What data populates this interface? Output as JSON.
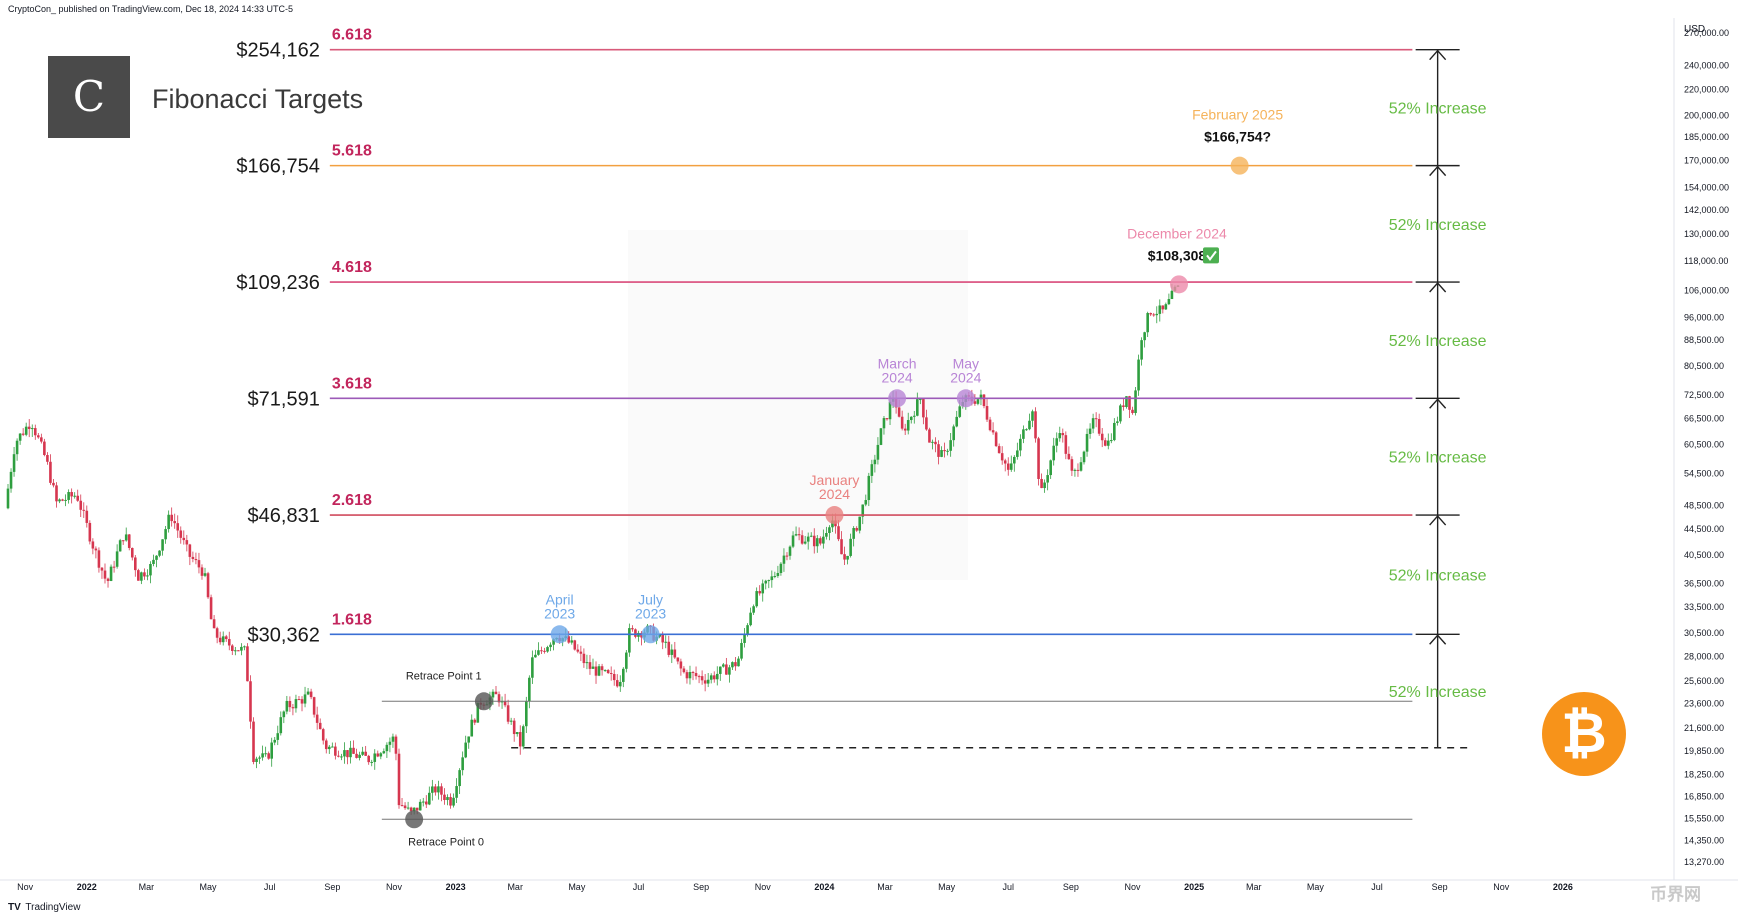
{
  "header": {
    "publisher": "CryptoCon_ published on TradingView.com, Dec 18, 2024 14:33 UTC-5",
    "title": "Fibonacci Targets",
    "currency": "USD",
    "footer_brand": "TradingView",
    "logo_glyph": "C",
    "badge_icon": "bitcoin-icon"
  },
  "colors": {
    "candle_up": "#2e9e3f",
    "candle_down": "#d6364f",
    "increase_text": "#66bb44",
    "fib_label": "#c2255c",
    "level_1618": "#3b6fd4",
    "level_2618": "#d04c5e",
    "level_3618": "#9c5ab8",
    "level_4618": "#d94a7a",
    "level_5618": "#f2a040",
    "level_6618": "#d85a7a",
    "badge": "#f7931a"
  },
  "chart_data": {
    "type": "candlestick",
    "y_scale": "log",
    "ylim": [
      13270,
      275000
    ],
    "x_range": [
      "2021-10-15",
      "2026-04-15"
    ],
    "y_ticks": [
      "270,000.00",
      "240,000.00",
      "220,000.00",
      "200,000.00",
      "185,000.00",
      "170,000.00",
      "154,000.00",
      "142,000.00",
      "130,000.00",
      "118,000.00",
      "106,000.00",
      "96,000.00",
      "88,500.00",
      "80,500.00",
      "72,500.00",
      "66,500.00",
      "60,500.00",
      "54,500.00",
      "48,500.00",
      "44,500.00",
      "40,500.00",
      "36,500.00",
      "33,500.00",
      "30,500.00",
      "28,000.00",
      "25,600.00",
      "23,600.00",
      "21,600.00",
      "19,850.00",
      "18,250.00",
      "16,850.00",
      "15,550.00",
      "14,350.00",
      "13,270.00"
    ],
    "x_ticks": [
      {
        "label": "Nov",
        "date": "2021-11-01"
      },
      {
        "label": "2022",
        "date": "2022-01-01"
      },
      {
        "label": "Mar",
        "date": "2022-03-01"
      },
      {
        "label": "May",
        "date": "2022-05-01"
      },
      {
        "label": "Jul",
        "date": "2022-07-01"
      },
      {
        "label": "Sep",
        "date": "2022-09-01"
      },
      {
        "label": "Nov",
        "date": "2022-11-01"
      },
      {
        "label": "2023",
        "date": "2023-01-01"
      },
      {
        "label": "Mar",
        "date": "2023-03-01"
      },
      {
        "label": "May",
        "date": "2023-05-01"
      },
      {
        "label": "Jul",
        "date": "2023-07-01"
      },
      {
        "label": "Sep",
        "date": "2023-09-01"
      },
      {
        "label": "Nov",
        "date": "2023-11-01"
      },
      {
        "label": "2024",
        "date": "2024-01-01"
      },
      {
        "label": "Mar",
        "date": "2024-03-01"
      },
      {
        "label": "May",
        "date": "2024-05-01"
      },
      {
        "label": "Jul",
        "date": "2024-07-01"
      },
      {
        "label": "Sep",
        "date": "2024-09-01"
      },
      {
        "label": "Nov",
        "date": "2024-11-01"
      },
      {
        "label": "2025",
        "date": "2025-01-01"
      },
      {
        "label": "Mar",
        "date": "2025-03-01"
      },
      {
        "label": "May",
        "date": "2025-05-01"
      },
      {
        "label": "Jul",
        "date": "2025-07-01"
      },
      {
        "label": "Sep",
        "date": "2025-09-01"
      },
      {
        "label": "Nov",
        "date": "2025-11-01"
      },
      {
        "label": "2026",
        "date": "2026-01-01"
      }
    ],
    "levels": [
      {
        "ratio": "6.618",
        "price_label": "$254,162",
        "value": 254162,
        "color": "#d85a7a"
      },
      {
        "ratio": "5.618",
        "price_label": "$166,754",
        "value": 166754,
        "color": "#f2a040"
      },
      {
        "ratio": "4.618",
        "price_label": "$109,236",
        "value": 109236,
        "color": "#d94a7a"
      },
      {
        "ratio": "3.618",
        "price_label": "$71,591",
        "value": 71591,
        "color": "#9c5ab8"
      },
      {
        "ratio": "2.618",
        "price_label": "$46,831",
        "value": 46831,
        "color": "#d04c5e"
      },
      {
        "ratio": "1.618",
        "price_label": "$30,362",
        "value": 30362,
        "color": "#3b6fd4"
      }
    ],
    "level_start_date": "2022-10-20",
    "level_end_date": "2025-08-05",
    "retrace_lines": [
      {
        "label": "Retrace Point 1",
        "value": 23800,
        "start_date": "2022-10-20"
      },
      {
        "label": "Retrace Point 0",
        "value": 15500,
        "start_date": "2022-10-20"
      }
    ],
    "base_dashed_value": 20100,
    "dashed_start_date": "2023-02-25",
    "increase_labels": [
      "52% Increase",
      "52% Increase",
      "52% Increase",
      "52% Increase",
      "52% Increase",
      "52% Increase"
    ],
    "increase_bounds": [
      254162,
      166754,
      109236,
      71591,
      46831,
      30362,
      20100
    ],
    "increase_arrow_date": "2025-08-30",
    "touch_points": [
      {
        "label_lines": [
          "Retrace Point 0"
        ],
        "date": "2022-11-21",
        "value": 15500,
        "color": "#555555",
        "label_side": "below"
      },
      {
        "label_lines": [
          "Retrace Point 1"
        ],
        "date": "2023-01-29",
        "value": 23800,
        "color": "#555555",
        "label_side": "above"
      },
      {
        "label_lines": [
          "April",
          "2023"
        ],
        "date": "2023-04-14",
        "value": 30362,
        "color": "#6ea8e8",
        "label_side": "above"
      },
      {
        "label_lines": [
          "July",
          "2023"
        ],
        "date": "2023-07-13",
        "value": 30362,
        "color": "#6ea8e8",
        "label_side": "above"
      },
      {
        "label_lines": [
          "January",
          "2024"
        ],
        "date": "2024-01-11",
        "value": 46831,
        "color": "#e9817f",
        "label_side": "above"
      },
      {
        "label_lines": [
          "March",
          "2024"
        ],
        "date": "2024-03-13",
        "value": 71591,
        "color": "#b884d6",
        "label_side": "above"
      },
      {
        "label_lines": [
          "May",
          "2024"
        ],
        "date": "2024-05-20",
        "value": 71591,
        "color": "#b884d6",
        "label_side": "above"
      },
      {
        "label_lines": [
          "December 2024",
          "$108,308"
        ],
        "date": "2024-12-17",
        "value": 108308,
        "color": "#ec89aa",
        "label_side": "above",
        "check": true
      },
      {
        "label_lines": [
          "February 2025",
          "$166,754?"
        ],
        "date": "2025-02-15",
        "value": 166754,
        "color": "#f5b35a",
        "label_side": "above"
      }
    ],
    "price_path": [
      [
        "2021-10-15",
        48000
      ],
      [
        "2021-10-25",
        61000
      ],
      [
        "2021-11-10",
        66000
      ],
      [
        "2021-11-25",
        57000
      ],
      [
        "2021-12-05",
        49000
      ],
      [
        "2021-12-25",
        50500
      ],
      [
        "2022-01-10",
        42000
      ],
      [
        "2022-01-24",
        36500
      ],
      [
        "2022-02-10",
        44000
      ],
      [
        "2022-02-24",
        37500
      ],
      [
        "2022-03-10",
        39000
      ],
      [
        "2022-03-28",
        47000
      ],
      [
        "2022-04-15",
        40500
      ],
      [
        "2022-04-30",
        38000
      ],
      [
        "2022-05-09",
        30500
      ],
      [
        "2022-05-20",
        29500
      ],
      [
        "2022-06-10",
        28500
      ],
      [
        "2022-06-18",
        19500
      ],
      [
        "2022-07-01",
        19300
      ],
      [
        "2022-07-20",
        23300
      ],
      [
        "2022-08-12",
        24300
      ],
      [
        "2022-08-28",
        20200
      ],
      [
        "2022-09-15",
        19800
      ],
      [
        "2022-10-10",
        19300
      ],
      [
        "2022-11-05",
        20900
      ],
      [
        "2022-11-09",
        16500
      ],
      [
        "2022-11-21",
        15800
      ],
      [
        "2022-12-15",
        17300
      ],
      [
        "2022-12-31",
        16550
      ],
      [
        "2023-01-15",
        20900
      ],
      [
        "2023-01-29",
        23800
      ],
      [
        "2023-02-15",
        24300
      ],
      [
        "2023-03-10",
        20200
      ],
      [
        "2023-03-20",
        27500
      ],
      [
        "2023-04-14",
        30400
      ],
      [
        "2023-04-28",
        29300
      ],
      [
        "2023-05-15",
        27000
      ],
      [
        "2023-06-15",
        25500
      ],
      [
        "2023-06-25",
        30500
      ],
      [
        "2023-07-13",
        30800
      ],
      [
        "2023-07-31",
        29200
      ],
      [
        "2023-08-17",
        26400
      ],
      [
        "2023-09-10",
        25800
      ],
      [
        "2023-10-10",
        27400
      ],
      [
        "2023-10-25",
        34200
      ],
      [
        "2023-11-15",
        37500
      ],
      [
        "2023-12-05",
        43500
      ],
      [
        "2023-12-31",
        42300
      ],
      [
        "2024-01-11",
        46600
      ],
      [
        "2024-01-23",
        39500
      ],
      [
        "2024-02-10",
        47500
      ],
      [
        "2024-02-28",
        62500
      ],
      [
        "2024-03-13",
        73000
      ],
      [
        "2024-03-20",
        63000
      ],
      [
        "2024-04-08",
        71500
      ],
      [
        "2024-04-17",
        61500
      ],
      [
        "2024-05-01",
        57500
      ],
      [
        "2024-05-20",
        71000
      ],
      [
        "2024-06-07",
        71500
      ],
      [
        "2024-06-24",
        60000
      ],
      [
        "2024-07-05",
        54500
      ],
      [
        "2024-07-28",
        69500
      ],
      [
        "2024-08-05",
        50000
      ],
      [
        "2024-08-24",
        64500
      ],
      [
        "2024-09-06",
        53500
      ],
      [
        "2024-09-27",
        66000
      ],
      [
        "2024-10-10",
        60500
      ],
      [
        "2024-10-29",
        72500
      ],
      [
        "2024-11-04",
        67800
      ],
      [
        "2024-11-13",
        90000
      ],
      [
        "2024-11-22",
        98500
      ],
      [
        "2024-12-05",
        98000
      ],
      [
        "2024-12-17",
        106500
      ]
    ]
  }
}
